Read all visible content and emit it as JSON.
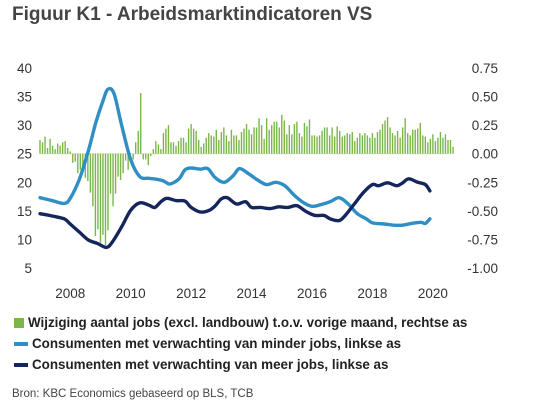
{
  "title": "Figuur K1 - Arbeidsmarktindicatoren VS",
  "source": "Bron: KBC Economics gebaseerd op BLS, TCB",
  "chart_data": {
    "type": "bar+line",
    "x_ticks": [
      "2008",
      "2010",
      "2012",
      "2014",
      "2016",
      "2018",
      "2020"
    ],
    "x_range": [
      2007.0,
      2020.5
    ],
    "left_axis": {
      "ticks": [
        "40",
        "35",
        "30",
        "25",
        "20",
        "15",
        "10",
        "5"
      ],
      "range": [
        5,
        40
      ]
    },
    "right_axis": {
      "ticks": [
        "0.75",
        "0.50",
        "0.25",
        "0.00",
        "-0.25",
        "-0.50",
        "-0.75",
        "-1.00"
      ],
      "range": [
        -1.0,
        0.75
      ]
    },
    "series": [
      {
        "name": "Wijziging aantal jobs (excl. landbouw) t.o.v. vorige maand, rechtse as",
        "type": "bar",
        "axis": "right",
        "color": "#7ab648",
        "x_start": 2007.0,
        "step": 0.08333,
        "values": [
          0.12,
          0.1,
          0.15,
          0.05,
          0.13,
          0.07,
          0.04,
          0.09,
          0.07,
          0.1,
          0.11,
          0.05,
          0.02,
          -0.08,
          -0.07,
          -0.17,
          -0.14,
          -0.16,
          -0.21,
          -0.24,
          -0.34,
          -0.46,
          -0.72,
          -0.66,
          -0.78,
          -0.71,
          -0.8,
          -0.67,
          -0.35,
          -0.46,
          -0.35,
          -0.2,
          -0.23,
          -0.17,
          -0.06,
          -0.14,
          0.0,
          -0.05,
          0.1,
          0.2,
          0.53,
          -0.05,
          -0.05,
          -0.1,
          -0.02,
          0.04,
          0.11,
          0.08,
          0.04,
          0.18,
          0.22,
          0.25,
          0.1,
          0.1,
          0.07,
          0.11,
          0.14,
          0.14,
          0.1,
          0.22,
          0.26,
          0.22,
          0.2,
          0.12,
          0.06,
          0.09,
          0.14,
          0.18,
          0.16,
          0.15,
          0.21,
          0.12,
          0.19,
          0.23,
          0.16,
          0.11,
          0.21,
          0.16,
          0.16,
          0.12,
          0.19,
          0.22,
          0.26,
          0.21,
          0.17,
          0.23,
          0.23,
          0.31,
          0.25,
          0.13,
          0.31,
          0.21,
          0.25,
          0.28,
          0.28,
          0.23,
          0.34,
          0.29,
          0.17,
          0.25,
          0.17,
          0.26,
          0.28,
          0.18,
          0.15,
          0.27,
          0.24,
          0.3,
          0.16,
          0.16,
          0.15,
          0.16,
          0.2,
          0.23,
          0.23,
          0.16,
          0.23,
          0.15,
          0.24,
          0.2,
          0.15,
          0.16,
          0.18,
          0.17,
          0.19,
          0.11,
          0.14,
          0.18,
          0.16,
          0.18,
          0.16,
          0.14,
          0.18,
          0.14,
          0.19,
          0.21,
          0.26,
          0.29,
          0.32,
          0.23,
          0.18,
          0.16,
          0.2,
          0.14,
          0.23,
          0.31,
          0.18,
          0.16,
          0.21,
          0.21,
          0.22,
          0.27,
          0.16,
          0.15,
          0.1,
          0.13,
          0.17,
          0.11,
          0.14,
          0.19,
          0.14,
          0.17,
          0.12,
          0.12,
          0.06
        ]
      },
      {
        "name": "Consumenten met verwachting van minder jobs, linkse as",
        "type": "line",
        "axis": "left",
        "color": "#2f8fc4",
        "points": [
          [
            2007.0,
            17.3
          ],
          [
            2007.4,
            16.8
          ],
          [
            2007.8,
            16.3
          ],
          [
            2008.0,
            17.2
          ],
          [
            2008.3,
            20.5
          ],
          [
            2008.6,
            25.5
          ],
          [
            2008.85,
            30.5
          ],
          [
            2009.1,
            34.5
          ],
          [
            2009.25,
            36.3
          ],
          [
            2009.45,
            35.5
          ],
          [
            2009.7,
            30
          ],
          [
            2010.0,
            24
          ],
          [
            2010.3,
            21
          ],
          [
            2010.6,
            20.7
          ],
          [
            2010.9,
            20.5
          ],
          [
            2011.1,
            20.2
          ],
          [
            2011.3,
            19.7
          ],
          [
            2011.6,
            20.6
          ],
          [
            2011.8,
            22.2
          ],
          [
            2012.0,
            22.5
          ],
          [
            2012.3,
            22.3
          ],
          [
            2012.55,
            22.4
          ],
          [
            2012.8,
            20.8
          ],
          [
            2013.1,
            20
          ],
          [
            2013.4,
            21.2
          ],
          [
            2013.6,
            22.4
          ],
          [
            2013.9,
            21.5
          ],
          [
            2014.2,
            20.4
          ],
          [
            2014.5,
            19.6
          ],
          [
            2014.8,
            20
          ],
          [
            2015.1,
            19.4
          ],
          [
            2015.4,
            17.8
          ],
          [
            2015.7,
            16.5
          ],
          [
            2016.0,
            15.8
          ],
          [
            2016.3,
            16.1
          ],
          [
            2016.6,
            16.6
          ],
          [
            2016.9,
            17.3
          ],
          [
            2017.2,
            16.2
          ],
          [
            2017.5,
            14.5
          ],
          [
            2017.8,
            13.6
          ],
          [
            2018.0,
            12.9
          ],
          [
            2018.4,
            12.7
          ],
          [
            2018.7,
            12.5
          ],
          [
            2019.0,
            12.5
          ],
          [
            2019.3,
            12.8
          ],
          [
            2019.6,
            13
          ],
          [
            2019.75,
            12.8
          ],
          [
            2019.9,
            13.6
          ]
        ]
      },
      {
        "name": "Consumenten met verwachting van meer jobs, linkse as",
        "type": "line",
        "axis": "left",
        "color": "#14265c",
        "points": [
          [
            2007.0,
            14.5
          ],
          [
            2007.4,
            14.1
          ],
          [
            2007.8,
            13.6
          ],
          [
            2008.0,
            12.7
          ],
          [
            2008.3,
            11.3
          ],
          [
            2008.6,
            9.9
          ],
          [
            2008.9,
            9.3
          ],
          [
            2009.2,
            8.6
          ],
          [
            2009.4,
            9.6
          ],
          [
            2009.7,
            12.2
          ],
          [
            2010.0,
            15.1
          ],
          [
            2010.3,
            16.4
          ],
          [
            2010.6,
            16
          ],
          [
            2010.8,
            15.6
          ],
          [
            2011.0,
            16.6
          ],
          [
            2011.2,
            17.2
          ],
          [
            2011.5,
            16.8
          ],
          [
            2011.8,
            16.7
          ],
          [
            2012.0,
            15.6
          ],
          [
            2012.3,
            14.8
          ],
          [
            2012.6,
            15.1
          ],
          [
            2012.8,
            15.9
          ],
          [
            2013.0,
            17.1
          ],
          [
            2013.2,
            17.3
          ],
          [
            2013.5,
            16.2
          ],
          [
            2013.8,
            16.6
          ],
          [
            2014.0,
            15.6
          ],
          [
            2014.3,
            15.6
          ],
          [
            2014.6,
            15.4
          ],
          [
            2014.9,
            15.7
          ],
          [
            2015.2,
            15.6
          ],
          [
            2015.5,
            15.9
          ],
          [
            2015.8,
            14.9
          ],
          [
            2016.1,
            14.2
          ],
          [
            2016.4,
            14.2
          ],
          [
            2016.6,
            13.6
          ],
          [
            2016.9,
            13.3
          ],
          [
            2017.1,
            14.2
          ],
          [
            2017.4,
            16.2
          ],
          [
            2017.7,
            18.2
          ],
          [
            2018.0,
            19.6
          ],
          [
            2018.2,
            19.4
          ],
          [
            2018.5,
            19.9
          ],
          [
            2018.8,
            19.4
          ],
          [
            2019.0,
            19.9
          ],
          [
            2019.2,
            20.6
          ],
          [
            2019.5,
            20
          ],
          [
            2019.75,
            19.6
          ],
          [
            2019.9,
            18.5
          ]
        ]
      }
    ]
  }
}
